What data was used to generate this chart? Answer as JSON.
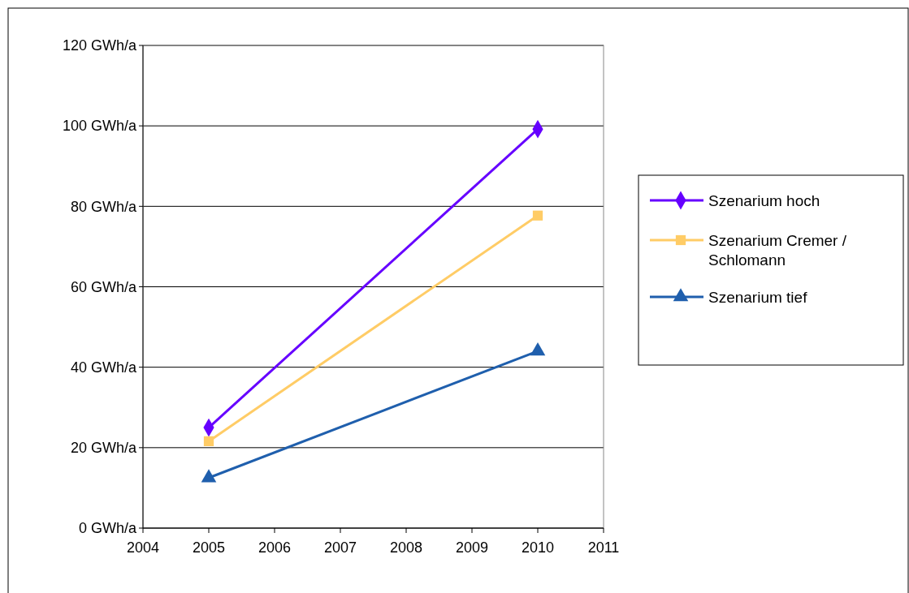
{
  "chart_data": {
    "type": "line",
    "x": [
      2005,
      2010
    ],
    "series": [
      {
        "name": "Szenarium hoch",
        "color": "#6600ff",
        "marker": "diamond",
        "values": [
          25,
          99.2
        ]
      },
      {
        "name": "Szenarium Cremer / Schlomann",
        "color": "#ffcc66",
        "marker": "square",
        "values": [
          21.6,
          77.7
        ]
      },
      {
        "name": "Szenarium tief",
        "color": "#1f5fad",
        "marker": "triangle",
        "values": [
          12.5,
          44
        ]
      }
    ],
    "xlim": [
      2004,
      2011
    ],
    "xticks": [
      2004,
      2005,
      2006,
      2007,
      2008,
      2009,
      2010,
      2011
    ],
    "ylim": [
      0,
      120
    ],
    "yticks": [
      {
        "value": 0,
        "label": "0 GWh/a"
      },
      {
        "value": 20,
        "label": "20 GWh/a"
      },
      {
        "value": 40,
        "label": "40 GWh/a"
      },
      {
        "value": 60,
        "label": "60 GWh/a"
      },
      {
        "value": 80,
        "label": "80 GWh/a"
      },
      {
        "value": 100,
        "label": "100 GWh/a"
      },
      {
        "value": 120,
        "label": "120 GWh/a"
      }
    ],
    "grid": "y",
    "legend": "right",
    "line_style": "solid"
  }
}
